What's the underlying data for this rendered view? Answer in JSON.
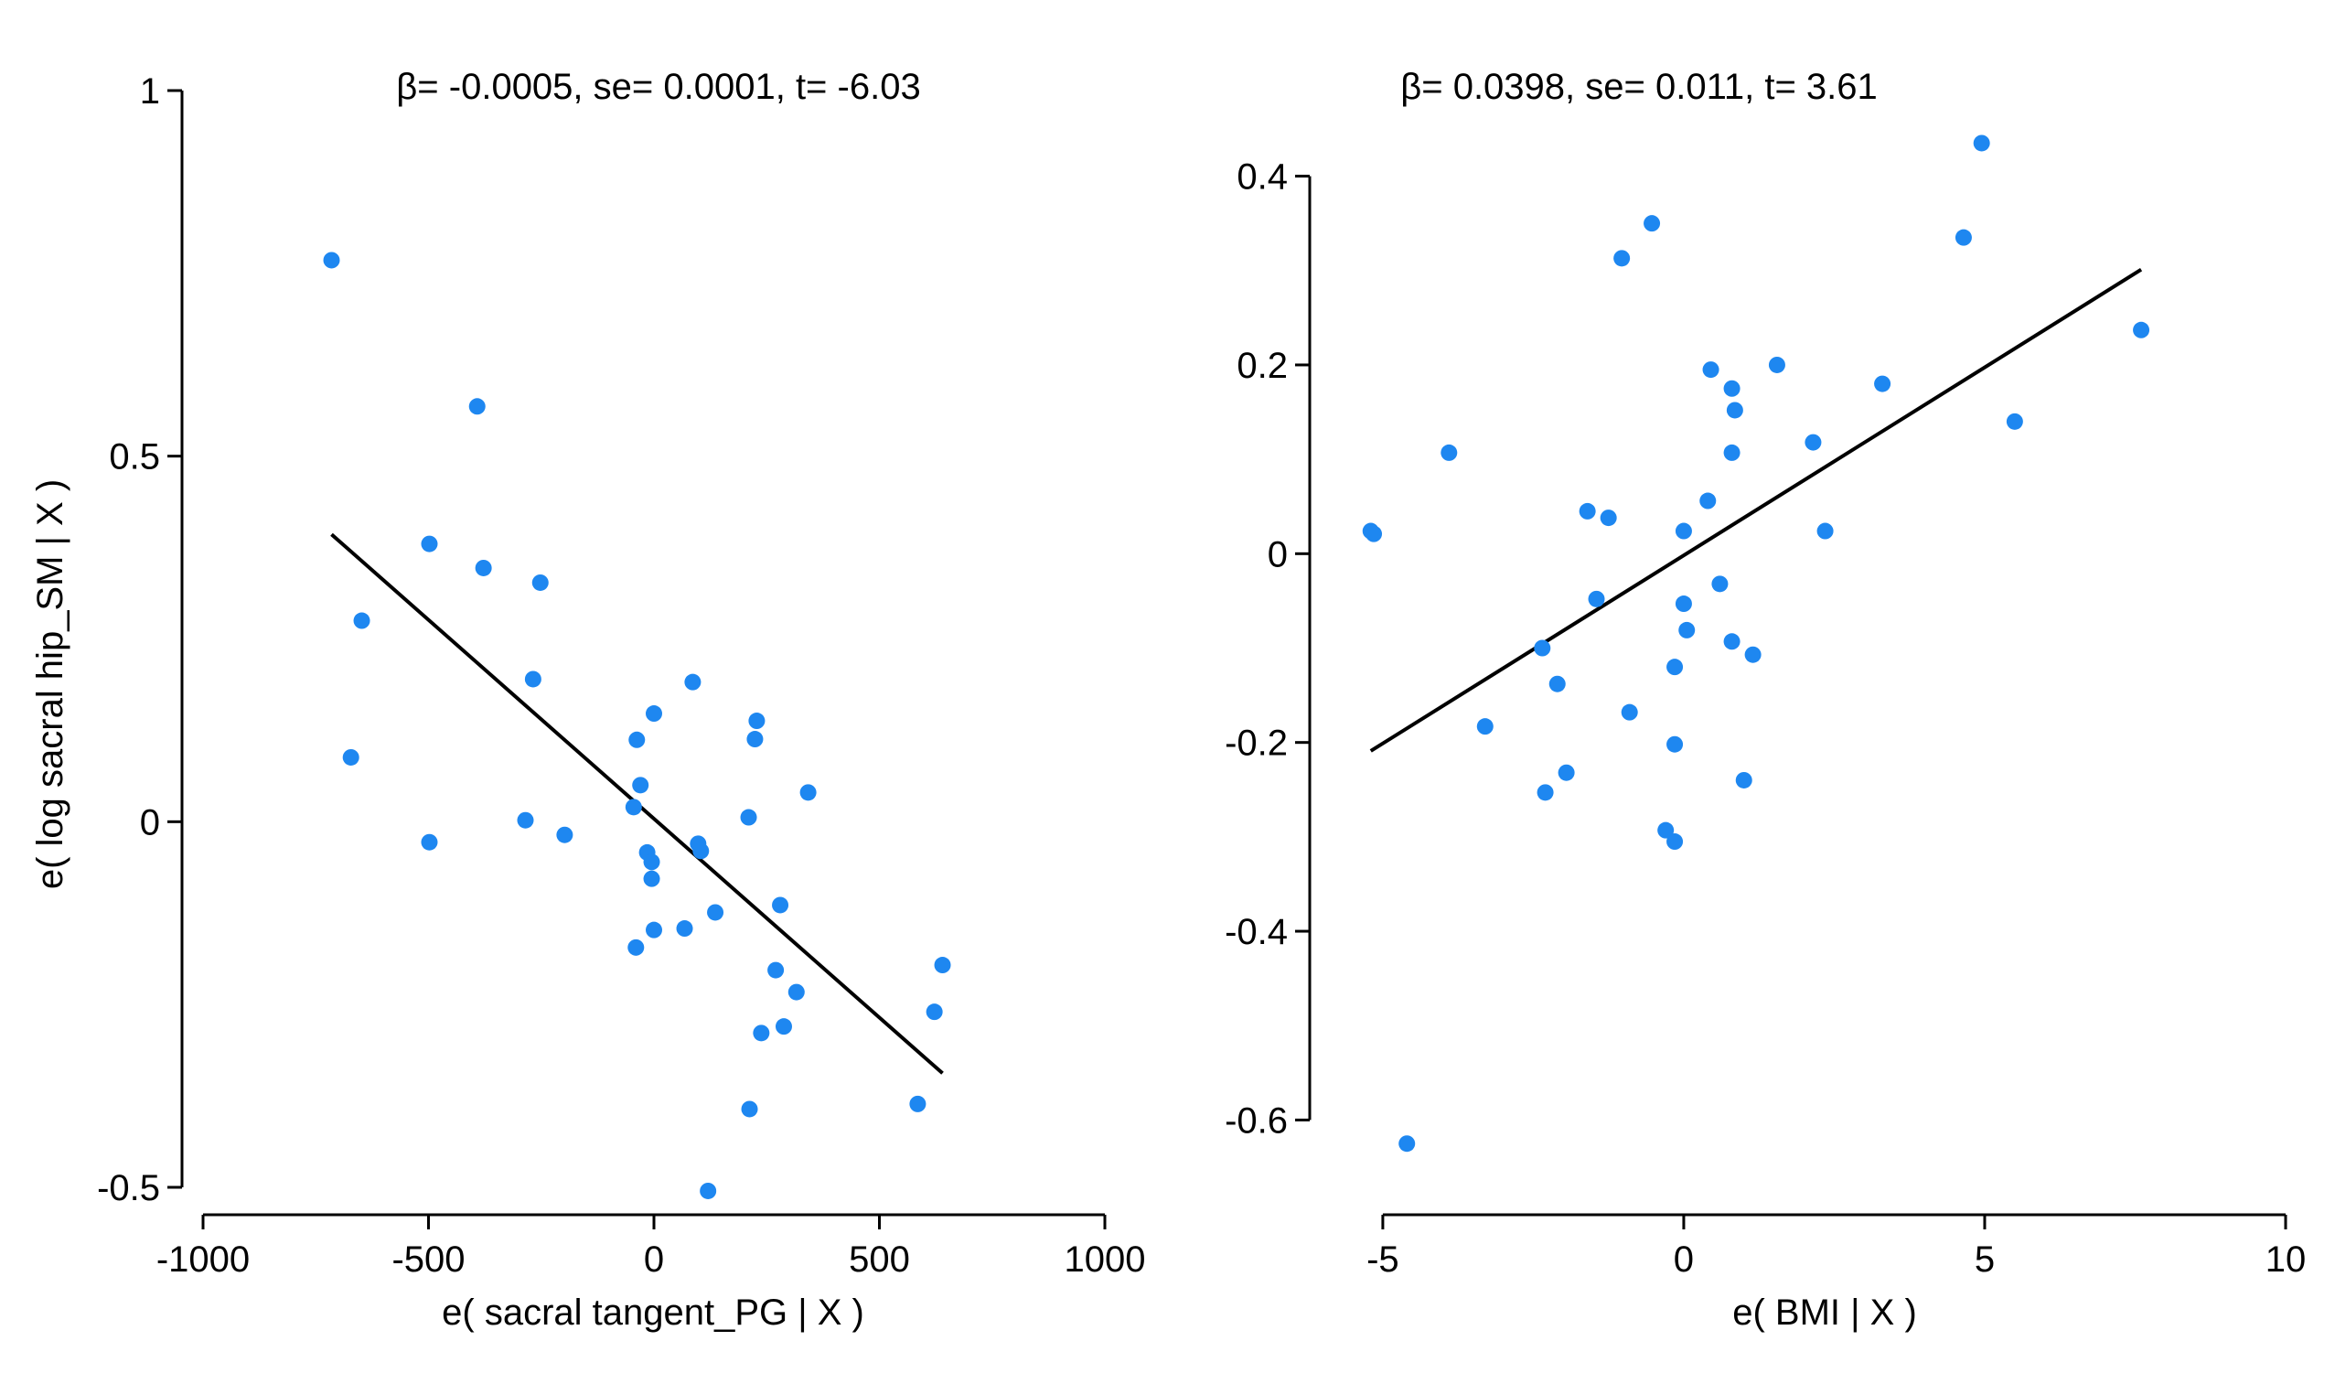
{
  "colors": {
    "point": "#1e87f0",
    "line": "#000000",
    "axis": "#000000",
    "background": "#ffffff"
  },
  "chart_data": [
    {
      "type": "scatter",
      "title": "",
      "annotation": "β= -0.0005, se= 0.0001, t= -6.03",
      "xlabel": "e( sacral tangent_PG | X )",
      "ylabel": "e( log sacral hip_SM | X )",
      "xlim": [
        -1000,
        1000
      ],
      "ylim": [
        -0.5,
        1
      ],
      "xticks": [
        -1000,
        -500,
        0,
        500,
        1000
      ],
      "xtick_labels": [
        "-1000",
        "-500",
        "0",
        "500",
        "1000"
      ],
      "yticks": [
        -0.5,
        0,
        0.5,
        1
      ],
      "ytick_labels": [
        "-0.5",
        "0",
        "0.5",
        "1"
      ],
      "grid": false,
      "fit_line": {
        "x": [
          -715,
          640
        ],
        "y": [
          0.393,
          -0.344
        ]
      },
      "x": [
        -715,
        -392,
        -498,
        -378,
        -252,
        -648,
        -268,
        -672,
        -498,
        -285,
        -198,
        86,
        0,
        -38,
        -30,
        228,
        224,
        342,
        280,
        210,
        -45,
        -15,
        98,
        104,
        -5,
        -5,
        0,
        -40,
        68,
        136,
        270,
        316,
        288,
        238,
        640,
        622,
        585,
        212,
        120
      ],
      "y": [
        0.768,
        0.568,
        0.38,
        0.347,
        0.327,
        0.275,
        0.195,
        0.088,
        -0.028,
        0.002,
        -0.018,
        0.191,
        0.148,
        0.112,
        0.05,
        0.138,
        0.113,
        0.04,
        -0.114,
        0.006,
        0.02,
        -0.042,
        -0.03,
        -0.04,
        -0.055,
        -0.078,
        -0.148,
        -0.172,
        -0.146,
        -0.124,
        -0.203,
        -0.233,
        -0.28,
        -0.289,
        -0.196,
        -0.26,
        -0.386,
        -0.393,
        -0.505
      ]
    },
    {
      "type": "scatter",
      "title": "",
      "annotation": "β= 0.0398, se= 0.011, t= 3.61",
      "xlabel": "e( BMI | X )",
      "ylabel": "",
      "xlim": [
        -5.5,
        10
      ],
      "ylim": [
        -0.65,
        0.45
      ],
      "xticks": [
        -5,
        0,
        5,
        10
      ],
      "xtick_labels": [
        "-5",
        "0",
        "5",
        "10"
      ],
      "yticks": [
        -0.6,
        -0.4,
        -0.2,
        0,
        0.2,
        0.4
      ],
      "ytick_labels": [
        "-0.6",
        "-0.4",
        "-0.2",
        "0",
        "0.2",
        "0.4"
      ],
      "grid": false,
      "fit_line": {
        "x": [
          -5.2,
          7.6
        ],
        "y": [
          -0.209,
          0.301
        ]
      },
      "x": [
        4.95,
        -0.53,
        -1.03,
        4.65,
        7.6,
        0.45,
        1.55,
        0.8,
        0.85,
        3.3,
        5.5,
        2.15,
        0.8,
        -3.9,
        -1.6,
        -1.25,
        0.4,
        -5.2,
        -5.15,
        2.35,
        0.0,
        0.6,
        -1.45,
        0.0,
        0.05,
        0.8,
        1.15,
        -2.35,
        -0.15,
        -2.1,
        -0.9,
        -3.3,
        -0.15,
        -1.95,
        1.0,
        -2.3,
        -0.3,
        -0.15,
        -4.6
      ],
      "y": [
        0.435,
        0.35,
        0.313,
        0.335,
        0.237,
        0.195,
        0.2,
        0.175,
        0.152,
        0.18,
        0.14,
        0.118,
        0.107,
        0.107,
        0.045,
        0.038,
        0.056,
        0.024,
        0.021,
        0.024,
        0.024,
        -0.032,
        -0.048,
        -0.053,
        -0.081,
        -0.093,
        -0.107,
        -0.1,
        -0.12,
        -0.138,
        -0.168,
        -0.183,
        -0.202,
        -0.232,
        -0.24,
        -0.253,
        -0.293,
        -0.305,
        -0.625
      ]
    }
  ]
}
